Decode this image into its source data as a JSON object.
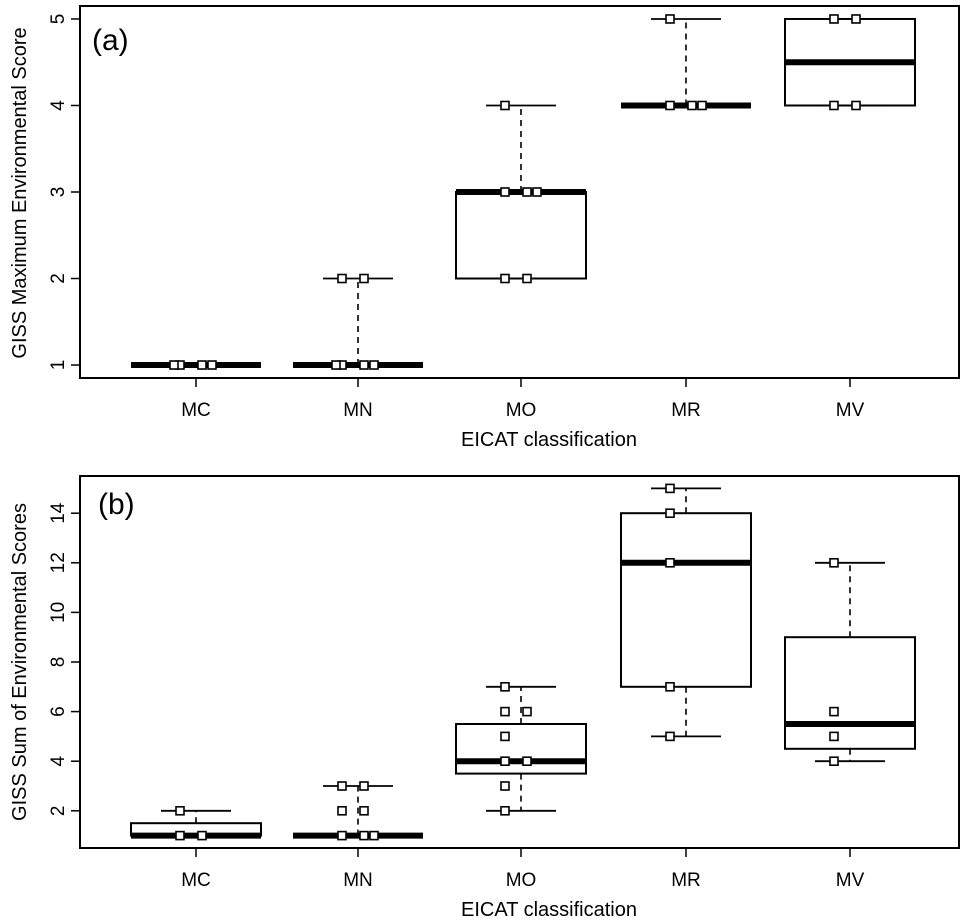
{
  "chart_data": [
    {
      "type": "box",
      "panel_label": "(a)",
      "xlabel": "EICAT classification",
      "ylabel": "GISS Maximum Environmental Score",
      "ylim": [
        0.85,
        5.15
      ],
      "yticks": [
        1,
        2,
        3,
        4,
        5
      ],
      "categories": [
        "MC",
        "MN",
        "MO",
        "MR",
        "MV"
      ],
      "boxes": [
        {
          "category": "MC",
          "min": 1,
          "q1": 1,
          "median": 1,
          "q3": 1,
          "max": 1
        },
        {
          "category": "MN",
          "min": 1,
          "q1": 1,
          "median": 1,
          "q3": 1,
          "max": 2
        },
        {
          "category": "MO",
          "min": 2,
          "q1": 2,
          "median": 3,
          "q3": 3,
          "max": 4
        },
        {
          "category": "MR",
          "min": 4,
          "q1": 4,
          "median": 4,
          "q3": 4,
          "max": 5
        },
        {
          "category": "MV",
          "min": 4,
          "q1": 4,
          "median": 4.5,
          "q3": 5,
          "max": 5
        }
      ],
      "points": [
        {
          "category": "MC",
          "values": [
            1,
            1,
            1,
            1
          ]
        },
        {
          "category": "MN",
          "values": [
            1,
            1,
            1,
            1,
            2,
            2
          ]
        },
        {
          "category": "MO",
          "values": [
            2,
            2,
            3,
            3,
            3,
            4
          ]
        },
        {
          "category": "MR",
          "values": [
            4,
            4,
            4,
            5
          ]
        },
        {
          "category": "MV",
          "values": [
            4,
            4,
            5,
            5
          ]
        }
      ]
    },
    {
      "type": "box",
      "panel_label": "(b)",
      "xlabel": "EICAT classification",
      "ylabel": "GISS Sum of Environmental Scores",
      "ylim": [
        0.5,
        15.5
      ],
      "yticks": [
        2,
        4,
        6,
        8,
        10,
        12,
        14
      ],
      "categories": [
        "MC",
        "MN",
        "MO",
        "MR",
        "MV"
      ],
      "boxes": [
        {
          "category": "MC",
          "min": 1,
          "q1": 1,
          "median": 1,
          "q3": 1.5,
          "max": 2
        },
        {
          "category": "MN",
          "min": 1,
          "q1": 1,
          "median": 1,
          "q3": 1,
          "max": 3
        },
        {
          "category": "MO",
          "min": 2,
          "q1": 3.5,
          "median": 4,
          "q3": 5.5,
          "max": 7
        },
        {
          "category": "MR",
          "min": 5,
          "q1": 7,
          "median": 12,
          "q3": 14,
          "max": 15
        },
        {
          "category": "MV",
          "min": 4,
          "q1": 4.5,
          "median": 5.5,
          "q3": 9,
          "max": 12
        }
      ],
      "points": [
        {
          "category": "MC",
          "values": [
            1,
            1,
            2
          ]
        },
        {
          "category": "MN",
          "values": [
            1,
            1,
            1,
            2,
            2,
            3,
            3
          ]
        },
        {
          "category": "MO",
          "values": [
            2,
            3,
            4,
            4,
            5,
            6,
            6,
            7
          ]
        },
        {
          "category": "MR",
          "values": [
            5,
            7,
            12,
            14,
            15
          ]
        },
        {
          "category": "MV",
          "values": [
            4,
            5,
            6,
            12
          ]
        }
      ]
    }
  ]
}
